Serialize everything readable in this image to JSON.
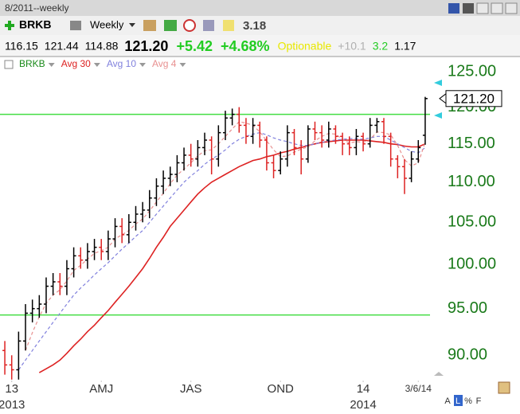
{
  "window": {
    "title": "8/2011--weekly"
  },
  "toolbar": {
    "symbol": "BRKB",
    "period": "Weekly",
    "value": "3.18"
  },
  "quote": [
    {
      "text": "116.15",
      "color": "#000000"
    },
    {
      "text": "121.44",
      "color": "#000000"
    },
    {
      "text": "114.88",
      "color": "#000000"
    },
    {
      "text": "121.20",
      "color": "#000000"
    },
    {
      "text": "+5.42",
      "color": "#22cc22"
    },
    {
      "text": "+4.68%",
      "color": "#22cc22"
    },
    {
      "text": "Optionable",
      "color": "#e8e800"
    },
    {
      "text": "+10.1",
      "color": "#b0b0b0"
    },
    {
      "text": "3.2",
      "color": "#22cc22"
    },
    {
      "text": "1.17",
      "color": "#000000"
    }
  ],
  "footer": {
    "buttons": [
      "A",
      "L",
      "%",
      "F"
    ]
  },
  "chart_data": {
    "type": "ohlc",
    "symbol": {
      "name": "BRKB",
      "color": "#1a8a1a"
    },
    "up_color": "#000000",
    "down_color": "#dd2222",
    "scale": "log",
    "xlim": [
      -0.7,
      61.7
    ],
    "ylim": [
      87.4,
      126.2
    ],
    "yticks": [
      {
        "value": 90,
        "label": "90.00"
      },
      {
        "value": 95,
        "label": "95.00"
      },
      {
        "value": 100,
        "label": "100.00"
      },
      {
        "value": 105,
        "label": "105.00"
      },
      {
        "value": 110,
        "label": "110.00"
      },
      {
        "value": 115,
        "label": "115.00"
      },
      {
        "value": 120,
        "label": "120.00"
      },
      {
        "value": 125,
        "label": "125.00"
      }
    ],
    "xticks": [
      {
        "value": 1,
        "label": "13"
      },
      {
        "value": 14,
        "label": "AMJ"
      },
      {
        "value": 27,
        "label": "JAS"
      },
      {
        "value": 40,
        "label": "OND"
      },
      {
        "value": 52,
        "label": "14"
      },
      {
        "value": 60,
        "label": "3/6/14"
      }
    ],
    "xticks2": [
      {
        "value": 1,
        "label": "2013"
      },
      {
        "value": 52,
        "label": "2014"
      }
    ],
    "hlines": [
      119,
      94.3
    ],
    "hline_color": "#44dd44",
    "last_price": {
      "value": 121.2,
      "label": "121.20"
    },
    "bars": [
      [
        90.5,
        91.5,
        88,
        89
      ],
      [
        89,
        90,
        87.5,
        88.5
      ],
      [
        88.5,
        92.5,
        87.5,
        91.5
      ],
      [
        91.5,
        95.5,
        90.5,
        94.5
      ],
      [
        94.5,
        96,
        93.5,
        95
      ],
      [
        95,
        96.5,
        94,
        95.5
      ],
      [
        95.5,
        98.5,
        94.5,
        97.5
      ],
      [
        97.5,
        99,
        96.5,
        98
      ],
      [
        98,
        99,
        96.5,
        97.5
      ],
      [
        97.5,
        100.5,
        96.5,
        99.5
      ],
      [
        99.5,
        102,
        98.5,
        101
      ],
      [
        101,
        102,
        99.5,
        100.5
      ],
      [
        100.5,
        102.5,
        99.5,
        101.5
      ],
      [
        101.5,
        103,
        100.5,
        102
      ],
      [
        102,
        103,
        100.5,
        101.5
      ],
      [
        101.5,
        104,
        100.5,
        103
      ],
      [
        103,
        105.5,
        102,
        104.5
      ],
      [
        104.5,
        105.5,
        102.5,
        103.5
      ],
      [
        103.5,
        106,
        102.5,
        105
      ],
      [
        105,
        107,
        104,
        106
      ],
      [
        106,
        107.5,
        105,
        106.5
      ],
      [
        106.5,
        109,
        105.5,
        108
      ],
      [
        108,
        110.5,
        107,
        109.5
      ],
      [
        109.5,
        111.5,
        108.5,
        110.5
      ],
      [
        110.5,
        112,
        109.5,
        111
      ],
      [
        111,
        113.5,
        110,
        112.5
      ],
      [
        112.5,
        114.5,
        111.5,
        113.5
      ],
      [
        113.5,
        115,
        112,
        113
      ],
      [
        113,
        115.5,
        112,
        114.5
      ],
      [
        114.5,
        116.5,
        113.5,
        115.5
      ],
      [
        115.5,
        116,
        111,
        113
      ],
      [
        113,
        117.5,
        112,
        116.5
      ],
      [
        116.5,
        119.5,
        115.5,
        118.5
      ],
      [
        118.5,
        119.8,
        117.5,
        119
      ],
      [
        119,
        120,
        116.5,
        117.5
      ],
      [
        117.5,
        118.5,
        115,
        116
      ],
      [
        116,
        118.5,
        115,
        117.5
      ],
      [
        117.5,
        118,
        114.5,
        115.5
      ],
      [
        115.5,
        116,
        111.5,
        112.5
      ],
      [
        112.5,
        113.5,
        110.5,
        111.5
      ],
      [
        111.5,
        114,
        111,
        113
      ],
      [
        113,
        117.5,
        112,
        116.5
      ],
      [
        116.5,
        117,
        113.5,
        114.5
      ],
      [
        114.5,
        115.5,
        111,
        113
      ],
      [
        113,
        117.5,
        112.5,
        117
      ],
      [
        117,
        118,
        115.5,
        116.5
      ],
      [
        116.5,
        117.5,
        114.5,
        115.5
      ],
      [
        115.5,
        118,
        114.5,
        117
      ],
      [
        117,
        117.5,
        115,
        116
      ],
      [
        116,
        116.5,
        113.5,
        115
      ],
      [
        115,
        116,
        113.5,
        114.5
      ],
      [
        114.5,
        117,
        113.5,
        116
      ],
      [
        116,
        116.5,
        114,
        115
      ],
      [
        115,
        118.5,
        114.5,
        117.5
      ],
      [
        117.5,
        118.5,
        116.5,
        118
      ],
      [
        118,
        118.5,
        115,
        116
      ],
      [
        116,
        116.5,
        112,
        113
      ],
      [
        113,
        113.5,
        110.5,
        112
      ],
      [
        112,
        113,
        108.5,
        110.5
      ],
      [
        110.5,
        114,
        110,
        113
      ],
      [
        113,
        115.5,
        112.5,
        114.5
      ],
      [
        116.15,
        121.44,
        114.88,
        121.2
      ]
    ],
    "series": [
      {
        "name": "Avg 30",
        "color": "#dd2222",
        "dash": false,
        "values": [
          null,
          null,
          null,
          null,
          null,
          88.2,
          88.6,
          89.0,
          89.5,
          90.2,
          91.0,
          91.7,
          92.5,
          93.2,
          94.0,
          94.8,
          95.7,
          96.6,
          97.5,
          98.5,
          99.5,
          100.7,
          102.0,
          103.2,
          104.5,
          105.5,
          106.5,
          107.5,
          108.5,
          109.3,
          110.0,
          110.5,
          111.0,
          111.5,
          112.0,
          112.4,
          112.8,
          113.0,
          113.3,
          113.5,
          113.8,
          114.0,
          114.3,
          114.5,
          114.8,
          115.0,
          115.2,
          115.3,
          115.4,
          115.5,
          115.5,
          115.5,
          115.5,
          115.4,
          115.3,
          115.2,
          115.0,
          114.9,
          114.7,
          114.6,
          114.6,
          115.0
        ]
      },
      {
        "name": "Avg 10",
        "color": "#8080dd",
        "dash": true,
        "values": [
          null,
          null,
          88.5,
          89.5,
          90.5,
          91.5,
          92.5,
          93.5,
          94.5,
          95.5,
          96.5,
          97.3,
          98.0,
          98.8,
          99.5,
          100.2,
          101.0,
          101.8,
          102.5,
          103.3,
          104.0,
          105.0,
          106.0,
          107.0,
          108.0,
          109.0,
          110.0,
          110.8,
          111.5,
          112.3,
          113.0,
          113.5,
          114.2,
          115.0,
          115.6,
          116.0,
          116.3,
          116.5,
          116.2,
          115.8,
          115.5,
          115.3,
          115.0,
          114.8,
          114.8,
          115.0,
          115.2,
          115.4,
          115.5,
          115.6,
          115.7,
          115.7,
          115.6,
          115.8,
          116.0,
          116.0,
          115.5,
          115.0,
          114.5,
          114.0,
          113.8,
          114.5
        ]
      },
      {
        "name": "Avg 4",
        "color": "#e89090",
        "dash": true,
        "values": [
          null,
          null,
          null,
          90.5,
          92.4,
          94.1,
          95.6,
          96.5,
          97.1,
          98.1,
          99.3,
          99.9,
          100.6,
          101.3,
          101.6,
          102.0,
          103.0,
          103.5,
          104.0,
          104.8,
          105.4,
          106.4,
          107.5,
          108.6,
          109.8,
          110.9,
          111.7,
          112.5,
          113.4,
          114.1,
          114.2,
          115.0,
          116.0,
          117.0,
          118.0,
          117.8,
          117.5,
          116.6,
          115.4,
          114.2,
          113.3,
          113.4,
          113.9,
          114.3,
          114.6,
          115.4,
          116.0,
          116.4,
          116.3,
          115.6,
          115.1,
          115.3,
          115.2,
          115.6,
          116.6,
          116.5,
          116.2,
          114.8,
          112.9,
          112.1,
          112.5,
          115.2
        ]
      }
    ]
  }
}
